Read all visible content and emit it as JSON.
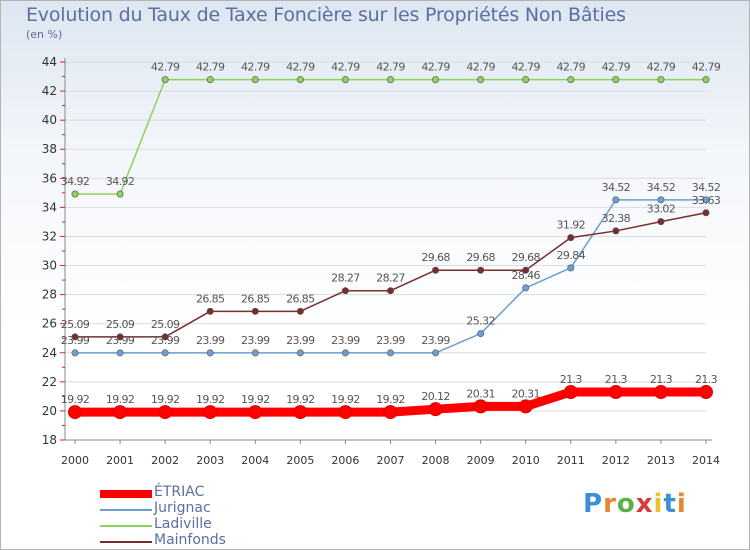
{
  "chart_data": {
    "type": "line",
    "title": "Evolution du Taux de Taxe Foncière sur les Propriétés Non Bâties",
    "ylabel": "(en %)",
    "xlabel": "",
    "ylim": [
      18,
      44
    ],
    "yticks": [
      18,
      20,
      22,
      24,
      26,
      28,
      30,
      32,
      34,
      36,
      38,
      40,
      42,
      44
    ],
    "categories": [
      "2000",
      "2001",
      "2002",
      "2003",
      "2004",
      "2005",
      "2006",
      "2007",
      "2008",
      "2009",
      "2010",
      "2011",
      "2012",
      "2013",
      "2014"
    ],
    "series": [
      {
        "name": "ÉTRIAC",
        "color": "#ff0000",
        "values": [
          19.92,
          19.92,
          19.92,
          19.92,
          19.92,
          19.92,
          19.92,
          19.92,
          20.12,
          20.31,
          20.31,
          21.3,
          21.3,
          21.3,
          21.3
        ],
        "labels": [
          "19.92",
          "19.92",
          "19.92",
          "19.92",
          "19.92",
          "19.92",
          "19.92",
          "19.92",
          "20.12",
          "20.31",
          "20.31",
          "21.3",
          "21.3",
          "21.3",
          "21.3"
        ]
      },
      {
        "name": "Jurignac",
        "color": "#6a9fd0",
        "values": [
          23.99,
          23.99,
          23.99,
          23.99,
          23.99,
          23.99,
          23.99,
          23.99,
          23.99,
          25.32,
          28.46,
          29.84,
          34.52,
          34.52,
          34.52
        ],
        "labels": [
          "23.99",
          "23.99",
          "23.99",
          "23.99",
          "23.99",
          "23.99",
          "23.99",
          "23.99",
          "23.99",
          "25.32",
          "28.46",
          "29.84",
          "34.52",
          "34.52",
          "34.52"
        ]
      },
      {
        "name": "Ladiville",
        "color": "#8ed15d",
        "values": [
          34.92,
          34.92,
          42.79,
          42.79,
          42.79,
          42.79,
          42.79,
          42.79,
          42.79,
          42.79,
          42.79,
          42.79,
          42.79,
          42.79,
          42.79
        ],
        "labels": [
          "34.92",
          "34.92",
          "42.79",
          "42.79",
          "42.79",
          "42.79",
          "42.79",
          "42.79",
          "42.79",
          "42.79",
          "42.79",
          "42.79",
          "42.79",
          "42.79",
          "42.79"
        ]
      },
      {
        "name": "Mainfonds",
        "color": "#7a2d2d",
        "values": [
          25.09,
          25.09,
          25.09,
          26.85,
          26.85,
          26.85,
          28.27,
          28.27,
          29.68,
          29.68,
          29.68,
          31.92,
          32.38,
          33.02,
          33.63
        ],
        "labels": [
          "25.09",
          "25.09",
          "25.09",
          "26.85",
          "26.85",
          "26.85",
          "28.27",
          "28.27",
          "29.68",
          "29.68",
          "29.68",
          "31.92",
          "32.38",
          "33.02",
          "33.63"
        ]
      }
    ]
  },
  "branding": {
    "logo_text": "Proxiti"
  }
}
